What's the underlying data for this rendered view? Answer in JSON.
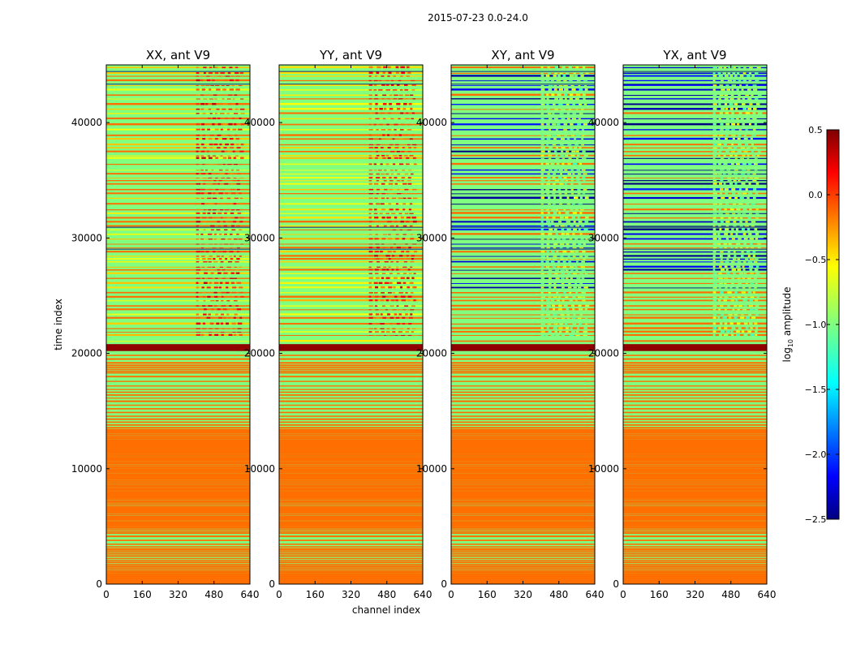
{
  "figure": {
    "suptitle": "2015-07-23 0.0-24.0",
    "xlabel": "channel index",
    "ylabel": "time index"
  },
  "chart_data": {
    "type": "heatmap",
    "title": "2015-07-23 0.0-24.0",
    "xlabel": "channel index",
    "ylabel": "time index",
    "xlim": [
      0,
      640
    ],
    "ylim": [
      0,
      45000
    ],
    "xticks": [
      0,
      160,
      320,
      480,
      640
    ],
    "yticks": [
      0,
      10000,
      20000,
      30000,
      40000
    ],
    "colormap": "jet",
    "panels": [
      {
        "title": "XX, ant V9",
        "pol": "XX"
      },
      {
        "title": "YY, ant V9",
        "pol": "YY"
      },
      {
        "title": "XY, ant V9",
        "pol": "XY"
      },
      {
        "title": "YX, ant V9",
        "pol": "YX"
      }
    ],
    "colorbar": {
      "label": "log10 amplitude",
      "min": -2.5,
      "max": 0.5,
      "ticks": [
        0.5,
        0.0,
        -0.5,
        -1.0,
        -1.5,
        -2.0,
        -2.5
      ],
      "tick_labels": [
        "0.5",
        "0.0",
        "−0.5",
        "−1.0",
        "−1.5",
        "−2.0",
        "−2.5"
      ]
    },
    "regions": [
      {
        "t0": 0,
        "t1": 20000,
        "description": "alternating green/orange-red horizontal bands across all channels"
      },
      {
        "t0": 20200,
        "t1": 20800,
        "description": "saturated dark-red band"
      },
      {
        "t0": 21000,
        "t1": 45000,
        "description": "mixed structure; channels ~400-580 brighter; XY/YX panels dark blue banding"
      }
    ],
    "band_levels": {
      "background": -1.0,
      "band": -0.2,
      "saturated": 0.45,
      "xy_low": -2.2
    }
  }
}
